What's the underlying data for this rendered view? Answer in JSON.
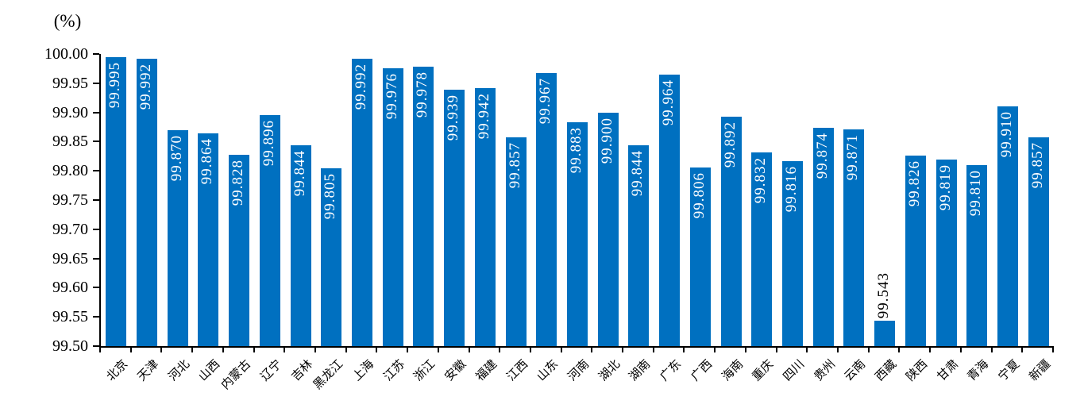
{
  "chart_data": {
    "type": "bar",
    "title": "",
    "ylabel": "(%)",
    "xlabel": "",
    "ylim": [
      99.5,
      100.0
    ],
    "ytick_step": 0.05,
    "ytick_labels": [
      "100.00",
      "99.95",
      "99.90",
      "99.85",
      "99.80",
      "99.75",
      "99.70",
      "99.65",
      "99.60",
      "99.55",
      "99.50"
    ],
    "grid": false,
    "legend": false,
    "bar_color": "#0070C0",
    "axis_color": "#000000",
    "label_color_inside": "#FFFFFF",
    "label_color_outside": "#000000",
    "outside_label_categories": [
      "西藏"
    ],
    "categories": [
      "北京",
      "天津",
      "河北",
      "山西",
      "内蒙古",
      "辽宁",
      "吉林",
      "黑龙江",
      "上海",
      "江苏",
      "浙江",
      "安徽",
      "福建",
      "江西",
      "山东",
      "河南",
      "湖北",
      "湖南",
      "广东",
      "广西",
      "海南",
      "重庆",
      "四川",
      "贵州",
      "云南",
      "西藏",
      "陕西",
      "甘肃",
      "青海",
      "宁夏",
      "新疆"
    ],
    "values": [
      99.995,
      99.992,
      99.87,
      99.864,
      99.828,
      99.896,
      99.844,
      99.805,
      99.992,
      99.976,
      99.978,
      99.939,
      99.942,
      99.857,
      99.967,
      99.883,
      99.9,
      99.844,
      99.964,
      99.806,
      99.892,
      99.832,
      99.816,
      99.874,
      99.871,
      99.543,
      99.826,
      99.819,
      99.81,
      99.91,
      99.857
    ],
    "value_labels": [
      "99.995",
      "99.992",
      "99.870",
      "99.864",
      "99.828",
      "99.896",
      "99.844",
      "99.805",
      "99.992",
      "99.976",
      "99.978",
      "99.939",
      "99.942",
      "99.857",
      "99.967",
      "99.883",
      "99.900",
      "99.844",
      "99.964",
      "99.806",
      "99.892",
      "99.832",
      "99.816",
      "99.874",
      "99.871",
      "99.543",
      "99.826",
      "99.819",
      "99.810",
      "99.910",
      "99.857"
    ]
  }
}
